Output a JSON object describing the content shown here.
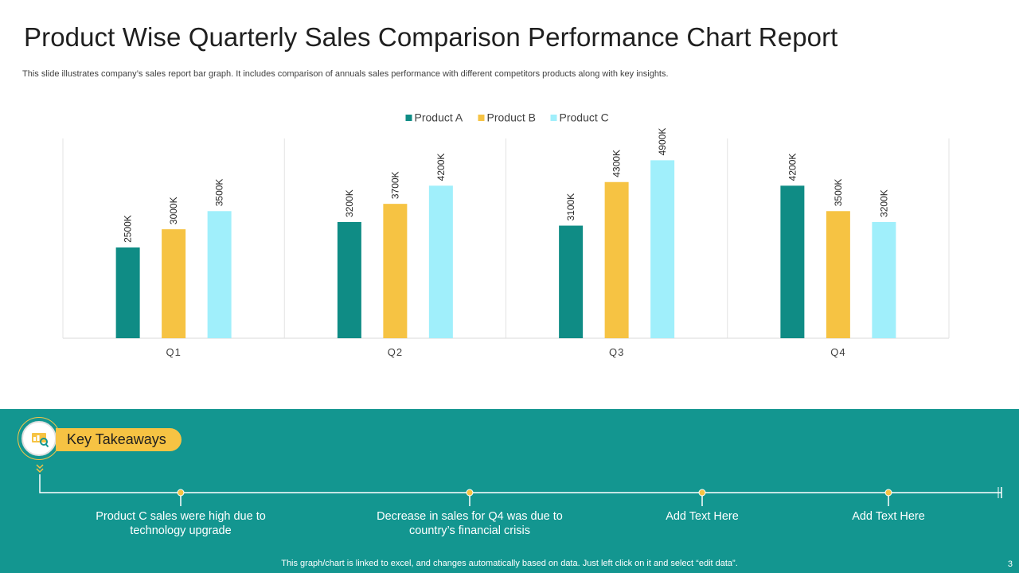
{
  "title": "Product Wise Quarterly Sales Comparison Performance Chart Report",
  "subtitle": "This slide illustrates company’s sales report bar graph. It includes comparison of annuals sales performance with different competitors products along with key insights.",
  "chart_data": {
    "type": "bar",
    "title": "",
    "categories": [
      "Q1",
      "Q2",
      "Q3",
      "Q4"
    ],
    "series": [
      {
        "name": "Product A",
        "values": [
          2500,
          3200,
          3100,
          4200
        ],
        "color": "#0f8c85"
      },
      {
        "name": "Product B",
        "values": [
          3000,
          3700,
          4300,
          3500
        ],
        "color": "#f6c343"
      },
      {
        "name": "Product C",
        "values": [
          3500,
          4200,
          4900,
          3200
        ],
        "color": "#a0effb"
      }
    ],
    "data_label_suffix": "K",
    "xlabel": "",
    "ylabel": "",
    "ylim": [
      0,
      5500
    ],
    "legend_position": "top-center",
    "grid": false
  },
  "takeaways": {
    "label": "Key Takeaways",
    "items": [
      "Product C sales were high due to technology upgrade",
      "Decrease in sales for Q4 was due to country’s financial crisis",
      "Add Text Here",
      "Add Text Here"
    ]
  },
  "footer_note": "This graph/chart is linked to excel, and changes automatically based on data. Just left click on it and select “edit data”.",
  "page_number": "3",
  "colors": {
    "teal": "#139690",
    "dark_teal": "#0f8c85",
    "yellow": "#f6c343",
    "light_blue": "#a0effb"
  }
}
